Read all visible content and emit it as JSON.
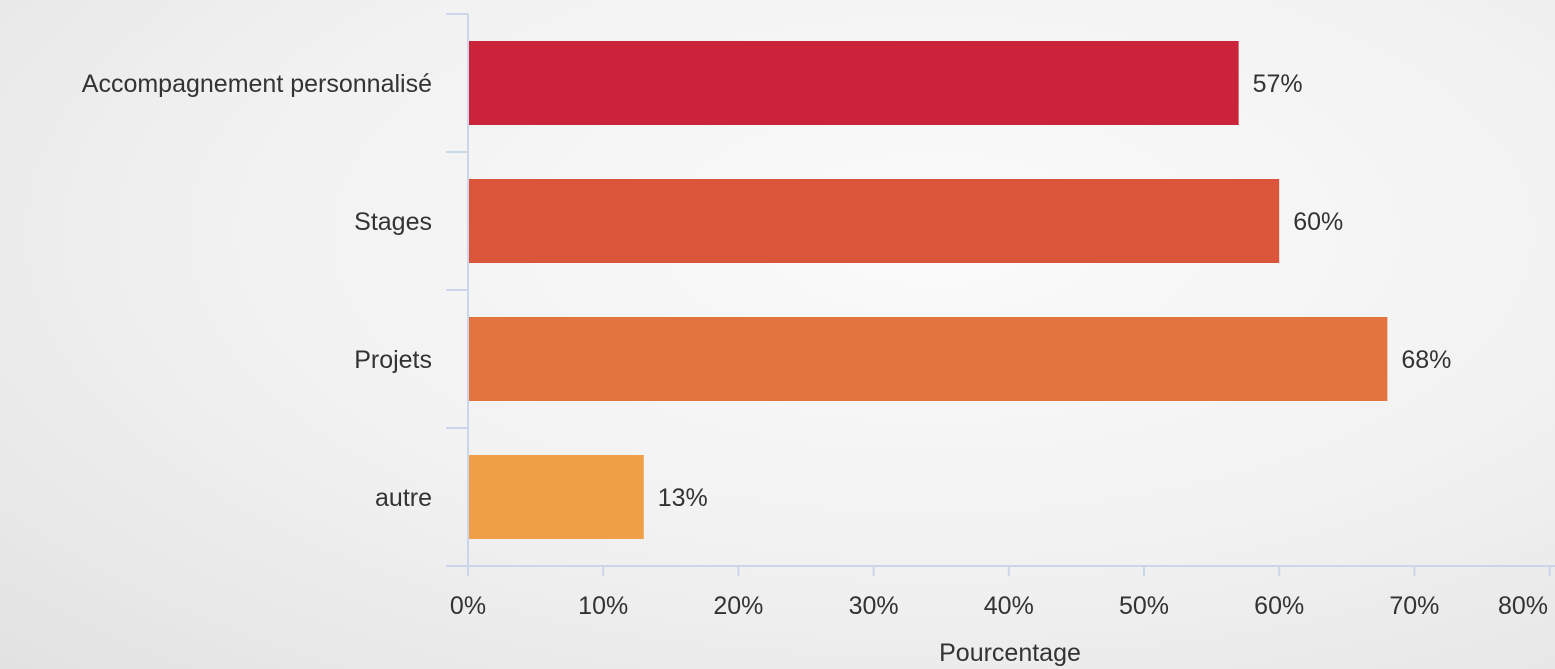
{
  "chart_data": {
    "type": "bar",
    "orientation": "horizontal",
    "categories": [
      "Accompagnement personnalisé",
      "Stages",
      "Projets",
      "autre"
    ],
    "values": [
      57,
      60,
      68,
      13
    ],
    "value_labels": [
      "57%",
      "60%",
      "68%",
      "13%"
    ],
    "colors": [
      "#cb2339",
      "#db553a",
      "#e37440",
      "#efa046"
    ],
    "xlabel": "Pourcentage",
    "ylabel": "",
    "title": "",
    "xlim": [
      0,
      80
    ],
    "xticks": [
      0,
      10,
      20,
      30,
      40,
      50,
      60,
      70,
      80
    ],
    "xtick_labels": [
      "0%",
      "10%",
      "20%",
      "30%",
      "40%",
      "50%",
      "60%",
      "70%",
      "80%"
    ],
    "grid": false,
    "legend": "none"
  },
  "style": {
    "axis_color": "#ccd6eb",
    "text_color": "#333333"
  }
}
